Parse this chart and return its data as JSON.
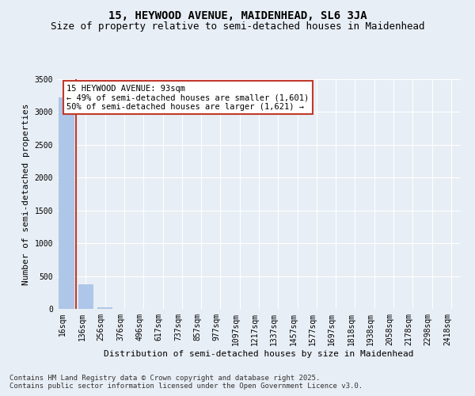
{
  "title": "15, HEYWOOD AVENUE, MAIDENHEAD, SL6 3JA",
  "subtitle": "Size of property relative to semi-detached houses in Maidenhead",
  "xlabel": "Distribution of semi-detached houses by size in Maidenhead",
  "ylabel": "Number of semi-detached properties",
  "categories": [
    "16sqm",
    "136sqm",
    "256sqm",
    "376sqm",
    "496sqm",
    "617sqm",
    "737sqm",
    "857sqm",
    "977sqm",
    "1097sqm",
    "1217sqm",
    "1337sqm",
    "1457sqm",
    "1577sqm",
    "1697sqm",
    "1818sqm",
    "1938sqm",
    "2058sqm",
    "2178sqm",
    "2298sqm",
    "2418sqm"
  ],
  "values": [
    3222,
    380,
    19,
    3,
    1,
    1,
    0,
    0,
    0,
    0,
    0,
    0,
    0,
    0,
    0,
    0,
    0,
    0,
    0,
    0,
    0
  ],
  "bar_color": "#aec6e8",
  "property_line_x": 0.5,
  "property_line_color": "#c0392b",
  "ylim": [
    0,
    3500
  ],
  "yticks": [
    0,
    500,
    1000,
    1500,
    2000,
    2500,
    3000,
    3500
  ],
  "background_color": "#e8eef5",
  "plot_background": "#e8eef5",
  "grid_color": "#ffffff",
  "annotation_text": "15 HEYWOOD AVENUE: 93sqm\n← 49% of semi-detached houses are smaller (1,601)\n50% of semi-detached houses are larger (1,621) →",
  "annotation_box_facecolor": "#ffffff",
  "annotation_box_edgecolor": "#c0392b",
  "footer_line1": "Contains HM Land Registry data © Crown copyright and database right 2025.",
  "footer_line2": "Contains public sector information licensed under the Open Government Licence v3.0.",
  "title_fontsize": 10,
  "subtitle_fontsize": 9,
  "xlabel_fontsize": 8,
  "ylabel_fontsize": 8,
  "tick_fontsize": 7,
  "annotation_fontsize": 7.5,
  "footer_fontsize": 6.5
}
